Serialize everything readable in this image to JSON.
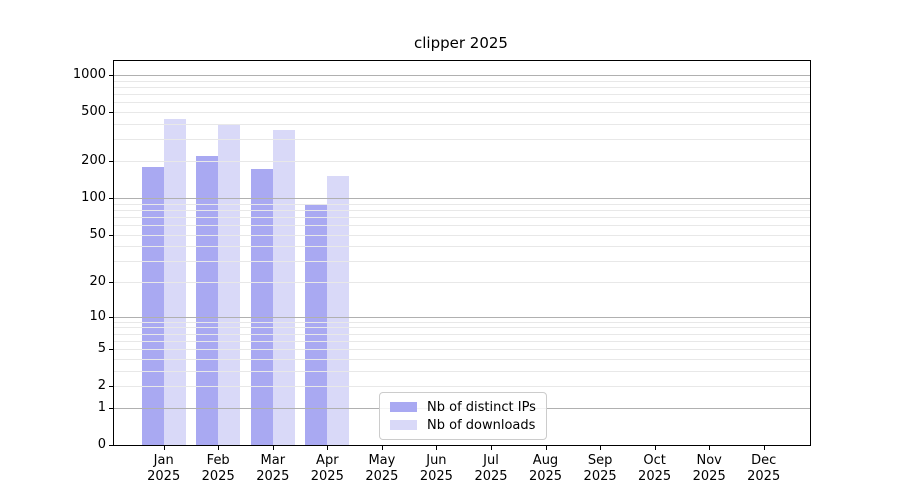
{
  "chart_data": {
    "type": "bar",
    "title": "clipper 2025",
    "categories": [
      "Jan 2025",
      "Feb 2025",
      "Mar 2025",
      "Apr 2025",
      "May 2025",
      "Jun 2025",
      "Jul 2025",
      "Aug 2025",
      "Sep 2025",
      "Oct 2025",
      "Nov 2025",
      "Dec 2025"
    ],
    "series": [
      {
        "name": "Nb of distinct IPs",
        "color": "#a9a9f2",
        "values": [
          180,
          218,
          172,
          88,
          null,
          null,
          null,
          null,
          null,
          null,
          null,
          null
        ]
      },
      {
        "name": "Nb of downloads",
        "color": "#d9d9f8",
        "values": [
          438,
          390,
          358,
          151,
          null,
          null,
          null,
          null,
          null,
          null,
          null,
          null
        ]
      }
    ],
    "yscale": "log1p",
    "yticks": [
      1000,
      500,
      200,
      100,
      50,
      20,
      10,
      5,
      2,
      1,
      0
    ],
    "ylim": [
      0,
      1300
    ],
    "grid": true,
    "legend_position": "lower center",
    "colors": {
      "major_grid": "#b0b0b0",
      "minor_grid": "#e8e8e8",
      "axis": "#000000",
      "background": "#ffffff"
    }
  }
}
